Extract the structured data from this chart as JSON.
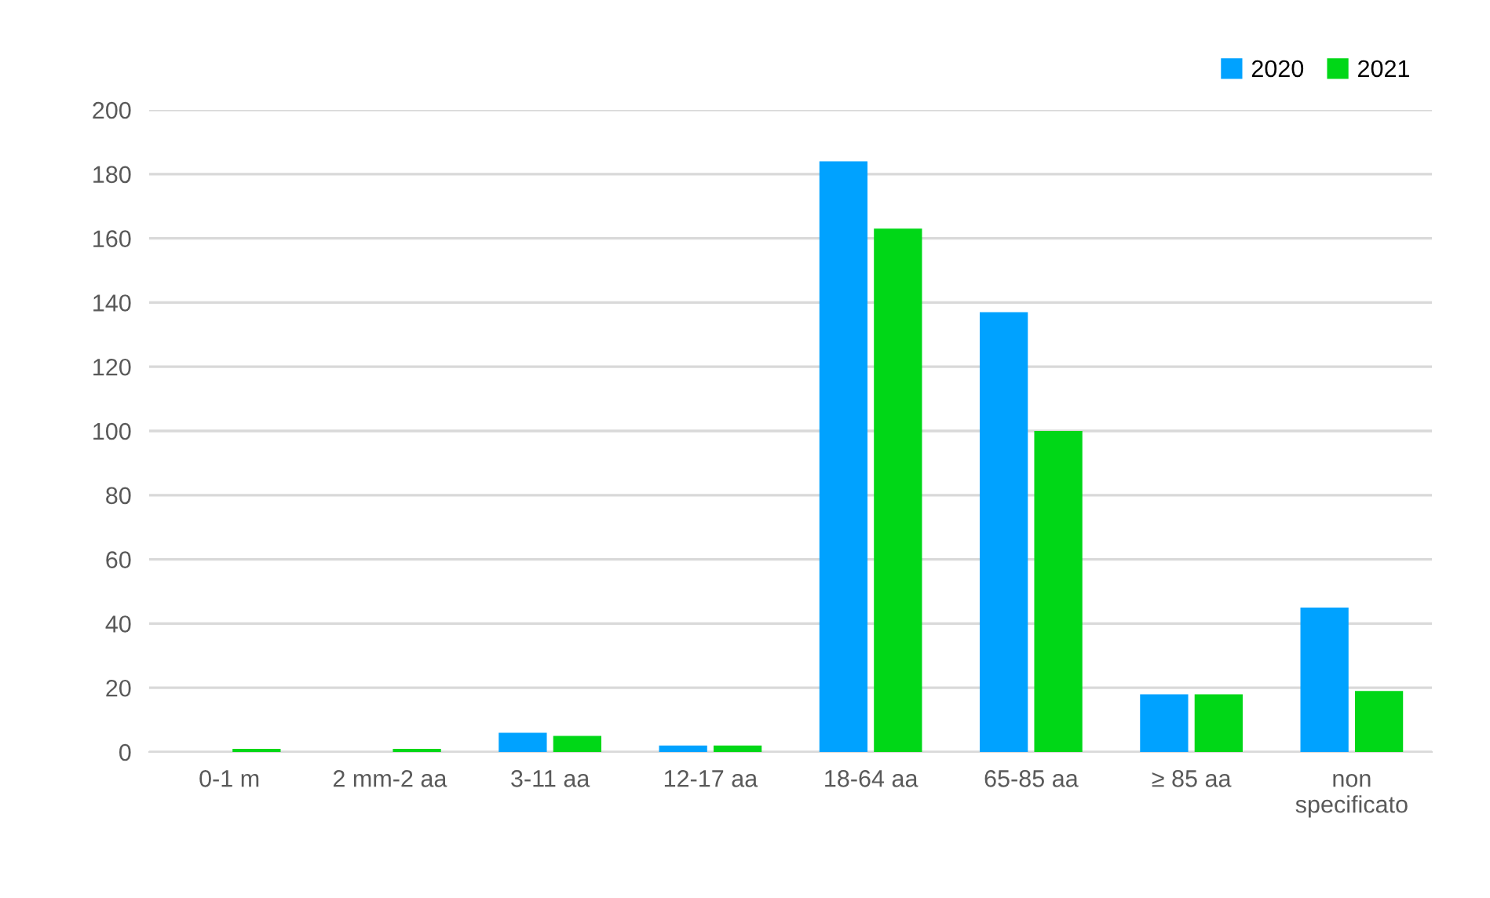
{
  "chart_data": {
    "type": "bar",
    "categories": [
      "0-1 m",
      "2 mm-2 aa",
      "3-11 aa",
      "12-17 aa",
      "18-64 aa",
      "65-85 aa",
      "≥ 85 aa",
      "non\nspecificato"
    ],
    "series": [
      {
        "name": "2020",
        "color": "#00a2ff",
        "values": [
          0,
          0,
          6,
          2,
          184,
          137,
          18,
          45
        ]
      },
      {
        "name": "2021",
        "color": "#00d717",
        "values": [
          1,
          1,
          5,
          2,
          163,
          100,
          18,
          19
        ]
      }
    ],
    "ylim": [
      0,
      200
    ],
    "yticks": [
      0,
      20,
      40,
      60,
      80,
      100,
      120,
      140,
      160,
      180,
      200
    ],
    "grid": "y",
    "legend": "top right"
  }
}
